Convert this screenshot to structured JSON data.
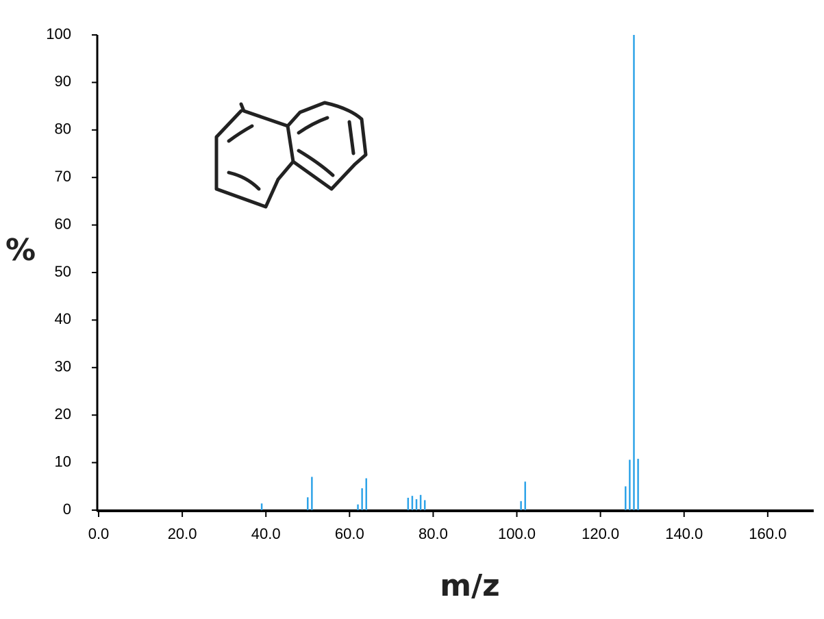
{
  "chart_data": {
    "type": "bar",
    "xlabel": "m/z",
    "ylabel": "%",
    "x": [
      39,
      50,
      51,
      62,
      63,
      64,
      74,
      75,
      76,
      77,
      78,
      101,
      102,
      126,
      127,
      128,
      129
    ],
    "values": [
      1.4,
      2.7,
      7,
      1.2,
      4.6,
      6.7,
      2.6,
      3,
      2.3,
      3.2,
      2.1,
      1.9,
      6,
      5,
      10.6,
      100,
      10.8
    ],
    "color": "#2ea3e8",
    "xlim": [
      0,
      171
    ],
    "xticks": [
      {
        "value": 0,
        "label": "0.0"
      },
      {
        "value": 20,
        "label": "20.0"
      },
      {
        "value": 40,
        "label": "40.0"
      },
      {
        "value": 60,
        "label": "60.0"
      },
      {
        "value": 80,
        "label": "80.0"
      },
      {
        "value": 100,
        "label": "100.0"
      },
      {
        "value": 120,
        "label": "120.0"
      },
      {
        "value": 140,
        "label": "140.0"
      },
      {
        "value": 160,
        "label": "160.0"
      }
    ],
    "ylim": [
      0,
      100
    ],
    "yticks": [
      0,
      10,
      20,
      30,
      40,
      50,
      60,
      70,
      80,
      90,
      100
    ]
  }
}
